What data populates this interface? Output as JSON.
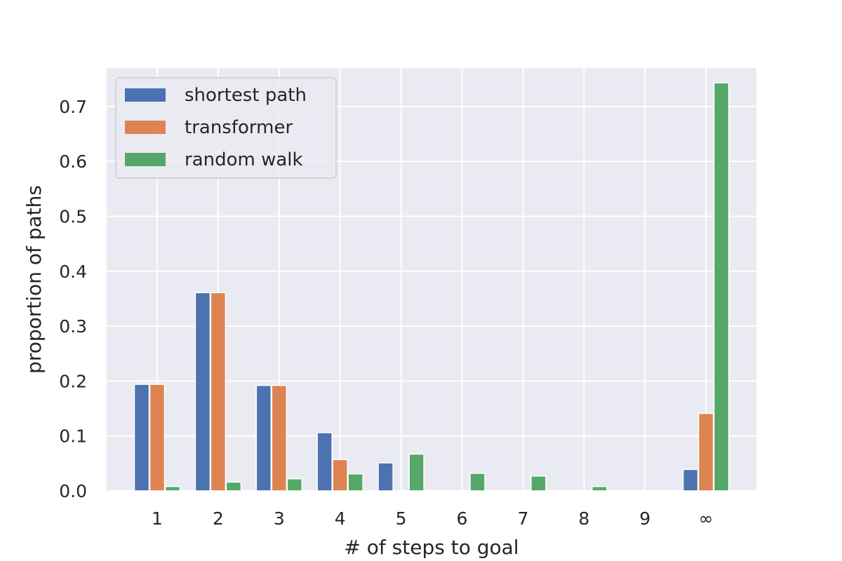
{
  "chart_data": {
    "type": "bar",
    "categories": [
      "1",
      "2",
      "3",
      "4",
      "5",
      "6",
      "7",
      "8",
      "9",
      "∞"
    ],
    "xlabel": "# of steps to goal",
    "ylabel": "proportion of paths",
    "ylim": [
      0,
      0.77
    ],
    "yticks": [
      "0.0",
      "0.1",
      "0.2",
      "0.3",
      "0.4",
      "0.5",
      "0.6",
      "0.7"
    ],
    "grid": true,
    "legend_position": "top-left",
    "series": [
      {
        "name": "shortest path",
        "color": "#4c72b0",
        "values": [
          0.194,
          0.361,
          0.192,
          0.106,
          0.051,
          0,
          0,
          0,
          0,
          0.039
        ]
      },
      {
        "name": "transformer",
        "color": "#dd8452",
        "values": [
          0.194,
          0.361,
          0.192,
          0.057,
          0,
          0,
          0,
          0,
          0,
          0.141
        ]
      },
      {
        "name": "random walk",
        "color": "#55a868",
        "values": [
          0.008,
          0.016,
          0.022,
          0.031,
          0.067,
          0.032,
          0.027,
          0.008,
          0,
          0.743
        ]
      }
    ]
  }
}
